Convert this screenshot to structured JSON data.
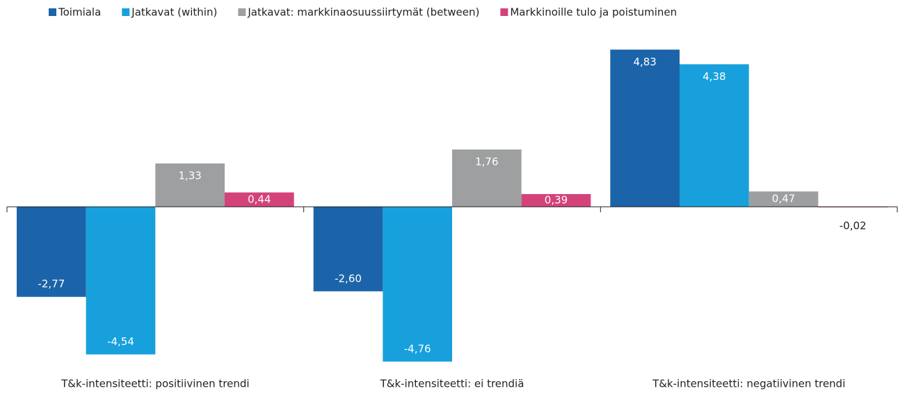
{
  "chart_data": {
    "type": "bar",
    "categories": [
      "T&k-intensiteetti: positiivinen trendi",
      "T&k-intensiteetti: ei trendiä",
      "T&k-intensiteetti: negatiivinen trendi"
    ],
    "series": [
      {
        "name": "Toimiala",
        "color": "#1b64a9",
        "values": [
          -2.77,
          -2.6,
          4.83
        ],
        "value_labels": [
          "-2,77",
          "-2,60",
          "4,83"
        ]
      },
      {
        "name": "Jatkavat (within)",
        "color": "#17a0dc",
        "values": [
          -4.54,
          -4.76,
          4.38
        ],
        "value_labels": [
          "-4,54",
          "-4,76",
          "4,38"
        ]
      },
      {
        "name": "Jatkavat: markkinaosuussiirtymät (between)",
        "color": "#9d9fa0",
        "values": [
          1.33,
          1.76,
          0.47
        ],
        "value_labels": [
          "1,33",
          "1,76",
          "0,47"
        ]
      },
      {
        "name": "Markkinoille tulo ja poistuminen",
        "color": "#d3437a",
        "values": [
          0.44,
          0.39,
          -0.02
        ],
        "value_labels": [
          "0,44",
          "0,39",
          "-0,02"
        ]
      }
    ],
    "ylim": [
      -5,
      5.5
    ],
    "legend": "top"
  }
}
